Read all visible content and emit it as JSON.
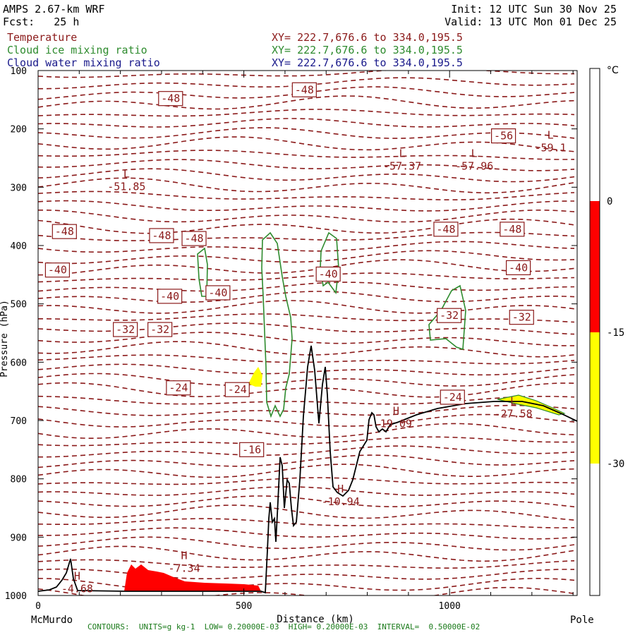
{
  "header": {
    "model": "AMPS 2.67-km WRF",
    "forecast": "Fcst:   25 h",
    "init": "Init: 12 UTC Sun 30 Nov 25",
    "valid": "Valid: 13 UTC Mon 01 Dec 25"
  },
  "fields": [
    {
      "name": "Temperature",
      "xy": "XY= 222.7,676.6 to 334.0,195.5",
      "color": "#8b1a1a"
    },
    {
      "name": "Cloud ice mixing ratio",
      "xy": "XY= 222.7,676.6 to 334.0,195.5",
      "color": "#2e8b2e"
    },
    {
      "name": "Cloud water mixing ratio",
      "xy": "XY= 222.7,676.6 to 334.0,195.5",
      "color": "#1a1a8b"
    }
  ],
  "chart_data": {
    "type": "cross-section",
    "xlabel": "Distance (km)",
    "ylabel": "Pressure (hPa)",
    "xlim": [
      0,
      1310
    ],
    "ylim": [
      1000,
      100
    ],
    "x_ticks": [
      0,
      500,
      1000
    ],
    "y_ticks": [
      100,
      200,
      300,
      400,
      500,
      600,
      700,
      800,
      900,
      1000
    ],
    "endpoint_labels": {
      "left": "McMurdo",
      "right": "Pole"
    },
    "temperature_labels": [
      {
        "x": 322,
        "p": 148,
        "text": "-48"
      },
      {
        "x": 647,
        "p": 133,
        "text": "-48"
      },
      {
        "x": 1131,
        "p": 212,
        "text": "-56"
      },
      {
        "x": 64,
        "p": 376,
        "text": "-48"
      },
      {
        "x": 300,
        "p": 383,
        "text": "-48"
      },
      {
        "x": 379,
        "p": 388,
        "text": "-48"
      },
      {
        "x": 991,
        "p": 372,
        "text": "-48"
      },
      {
        "x": 1152,
        "p": 372,
        "text": "-48"
      },
      {
        "x": 47,
        "p": 442,
        "text": "-40"
      },
      {
        "x": 320,
        "p": 487,
        "text": "-40"
      },
      {
        "x": 437,
        "p": 481,
        "text": "-40"
      },
      {
        "x": 705,
        "p": 449,
        "text": "-40"
      },
      {
        "x": 1167,
        "p": 438,
        "text": "-40"
      },
      {
        "x": 212,
        "p": 544,
        "text": "-32"
      },
      {
        "x": 296,
        "p": 544,
        "text": "-32"
      },
      {
        "x": 999,
        "p": 520,
        "text": "-32"
      },
      {
        "x": 1175,
        "p": 523,
        "text": "-32"
      },
      {
        "x": 341,
        "p": 644,
        "text": "-24"
      },
      {
        "x": 484,
        "p": 647,
        "text": "-24"
      },
      {
        "x": 1007,
        "p": 660,
        "text": "-24"
      },
      {
        "x": 519,
        "p": 750,
        "text": "-16"
      }
    ],
    "extrema": [
      {
        "type": "L",
        "value": "-51.85",
        "x": 215,
        "p": 298
      },
      {
        "type": "L",
        "value": "-57.37",
        "x": 885,
        "p": 263
      },
      {
        "type": "L",
        "value": "-57.96",
        "x": 1060,
        "p": 263
      },
      {
        "type": "L",
        "value": "-59.1",
        "x": 1245,
        "p": 231
      },
      {
        "type": "L",
        "value": "-27.58",
        "x": 1155,
        "p": 687
      },
      {
        "type": "H",
        "value": "19.09",
        "x": 870,
        "p": 704
      },
      {
        "type": "H",
        "value": "-10.94",
        "x": 735,
        "p": 838
      },
      {
        "type": "H",
        "value": "-7.34",
        "x": 355,
        "p": 952
      },
      {
        "type": "H",
        "value": "-4.68",
        "x": 95,
        "p": 987
      }
    ],
    "colorbar": {
      "unit": "°C",
      "labels": [
        "0",
        "-15",
        "-30"
      ],
      "colors": [
        "#ffffff",
        "#ff0000",
        "#ffff00",
        "#ffffff"
      ]
    },
    "colors": {
      "temperature": "#8b1a1a",
      "cloud_ice": "#2e8b2e",
      "terrain": "#000000",
      "warm_fill": "#ff0000",
      "mid_fill": "#ffff00"
    }
  },
  "footer": "CONTOURS:  UNITS=g kg-1  LOW= 0.20000E-03  HIGH= 0.20000E-03  INTERVAL=  0.50000E-02"
}
